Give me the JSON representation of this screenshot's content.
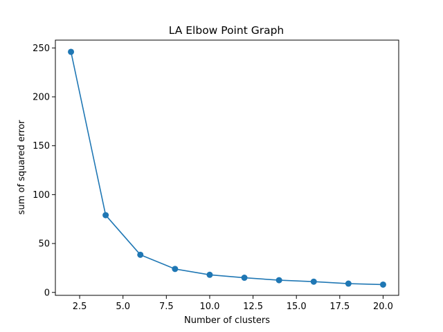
{
  "chart_data": {
    "type": "line",
    "title": "LA Elbow Point Graph",
    "xlabel": "Number of clusters",
    "ylabel": "sum of squared error",
    "xlim": [
      1.1,
      20.9
    ],
    "ylim": [
      -3,
      258
    ],
    "xticks": [
      2.5,
      5.0,
      7.5,
      10.0,
      12.5,
      15.0,
      17.5,
      20.0
    ],
    "xtick_labels": [
      "2.5",
      "5.0",
      "7.5",
      "10.0",
      "12.5",
      "15.0",
      "17.5",
      "20.0"
    ],
    "yticks": [
      0,
      50,
      100,
      150,
      200,
      250
    ],
    "ytick_labels": [
      "0",
      "50",
      "100",
      "150",
      "200",
      "250"
    ],
    "grid": false,
    "marker": "circle",
    "series": [
      {
        "color": "#1f77b4",
        "x": [
          2,
          4,
          6,
          8,
          10,
          12,
          14,
          16,
          18,
          20
        ],
        "y": [
          246,
          79,
          38.5,
          24,
          18,
          15,
          12.5,
          11,
          9,
          8
        ]
      }
    ]
  }
}
